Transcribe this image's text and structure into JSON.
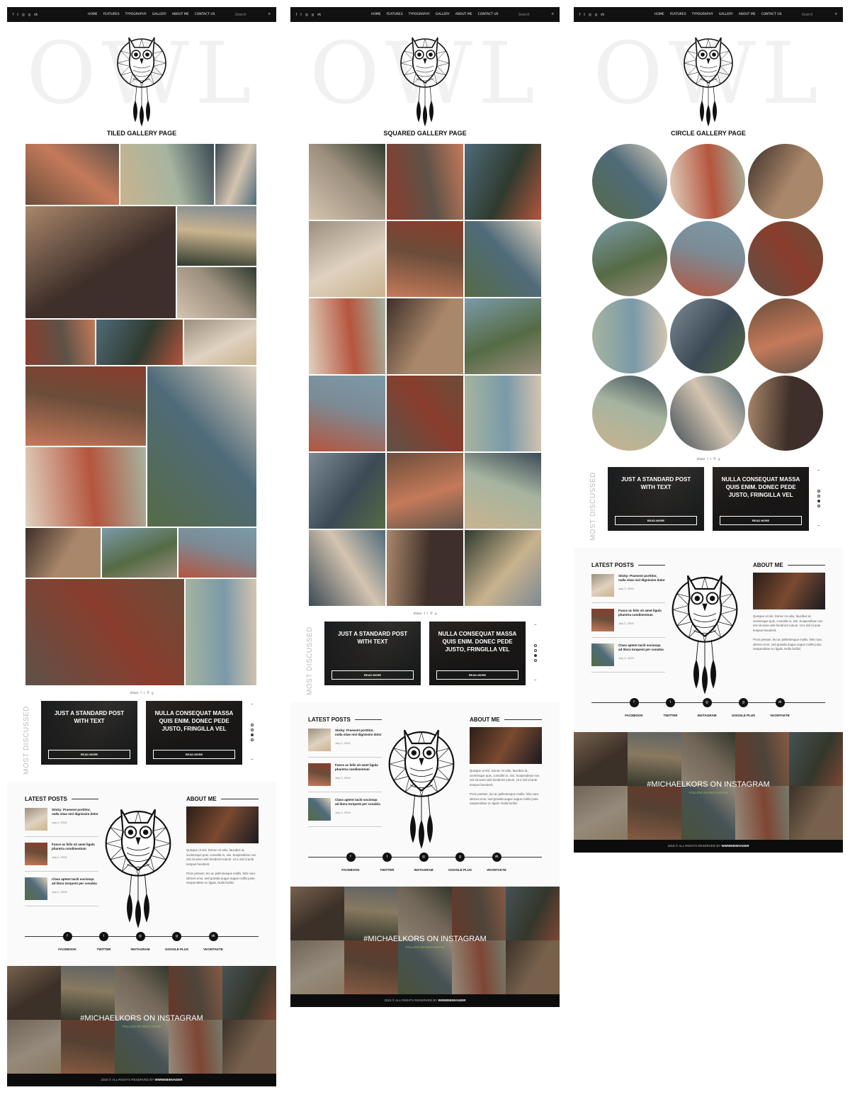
{
  "nav": {
    "social_icons": [
      "facebook-icon",
      "twitter-icon",
      "instagram-icon",
      "google-plus-icon",
      "vk-icon"
    ],
    "social_glyphs": [
      "f",
      "t",
      "◎",
      "g",
      "vk"
    ],
    "items": [
      "HOME",
      "FEATURES",
      "TYPOGRAPHY",
      "GALLERY",
      "ABOUT ME",
      "CONTACT US"
    ],
    "search_placeholder": "Search",
    "search_icon": "search-icon"
  },
  "brand": {
    "watermark": "OWL"
  },
  "pages": [
    {
      "title": "TILED GALLERY PAGE"
    },
    {
      "title": "SQUARED GALLERY PAGE"
    },
    {
      "title": "CIRCLE GALLERY PAGE"
    }
  ],
  "share": {
    "label": "Share",
    "icons": [
      "f",
      "t",
      "◎",
      "g"
    ]
  },
  "most_discussed": {
    "label": "MOST DISCUSSED",
    "cards": [
      {
        "title": "JUST A STANDARD POST WITH TEXT",
        "button": "READ MORE"
      },
      {
        "title": "NULLA CONSEQUAT MASSA QUIS ENIM. DONEC PEDE JUSTO, FRINGILLA VEL",
        "button": "READ MORE"
      }
    ]
  },
  "latest_posts": {
    "heading": "LATEST POSTS",
    "posts": [
      {
        "title": "Sticky: Praesent porttitor, nulla vitae nisl dignissim dolor",
        "date": "July 2, 2015"
      },
      {
        "title": "Fusce ac felis sit amet ligula pharetra condimentum",
        "date": "July 2, 2015"
      },
      {
        "title": "Class aptent taciti sociosqu ad litora torquent per conubia",
        "date": "July 2, 2015"
      }
    ]
  },
  "about_me": {
    "heading": "ABOUT ME",
    "para1": "Quisque ut nisi. Donec mi odio, faucibus at, scelerisque quis, convallis in, nisi. Suspendisse non nisl sit amet velit hendrerit rutrum. Ut a nisl id ante tempus hendrerit.",
    "para2": "Proin pretium, leo ac pellentesque mollis, felis nunc ultrices eros, sed gravida augue augue mollis justo. Suspendisse eu ligula. Nulla facilisi."
  },
  "social_footer": [
    {
      "label": "FACEBOOK",
      "icon": "facebook-icon",
      "glyph": "f"
    },
    {
      "label": "TWITTER",
      "icon": "twitter-icon",
      "glyph": "t"
    },
    {
      "label": "INSTAGRAM",
      "icon": "instagram-icon",
      "glyph": "◎"
    },
    {
      "label": "GOOGLE PLUS",
      "icon": "google-plus-icon",
      "glyph": "g"
    },
    {
      "label": "VKONTAKTE",
      "icon": "vk-icon",
      "glyph": "vk"
    }
  ],
  "instagram": {
    "title": "#MICHAELKORS ON INSTAGRAM",
    "follow": "FOLLOW ON INSTAGRAM"
  },
  "copyright": {
    "text": "2015 © ALL RIGHTS RESERVED BY ",
    "brand": "WWWEBINVADER"
  },
  "colors": {
    "nav_bg": "#111111",
    "card_bg": "#2a2a2a",
    "accent": "#8fbf5a"
  }
}
